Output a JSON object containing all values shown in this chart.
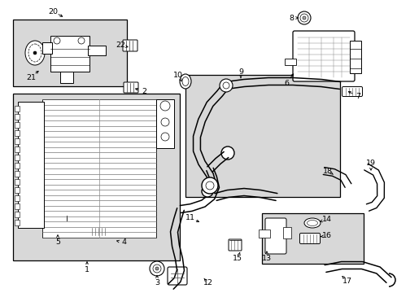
{
  "bg_color": "#ffffff",
  "line_color": "#000000",
  "box_fill": "#d8d8d8",
  "rad_fill": "#d8d8d8",
  "n_rad_lines": 26,
  "labels": [
    [
      "1",
      107,
      332,
      107,
      318
    ],
    [
      "2",
      177,
      112,
      163,
      108
    ],
    [
      "3",
      193,
      347,
      193,
      335
    ],
    [
      "4",
      152,
      298,
      140,
      295
    ],
    [
      "5",
      71,
      298,
      71,
      285
    ],
    [
      "6",
      352,
      102,
      363,
      88
    ],
    [
      "7",
      440,
      118,
      425,
      111
    ],
    [
      "8",
      358,
      22,
      370,
      22
    ],
    [
      "9",
      296,
      88,
      296,
      96
    ],
    [
      "10",
      219,
      92,
      225,
      103
    ],
    [
      "11",
      234,
      268,
      248,
      274
    ],
    [
      "12",
      256,
      348,
      249,
      340
    ],
    [
      "13",
      328,
      318,
      328,
      308
    ],
    [
      "14",
      402,
      270,
      390,
      273
    ],
    [
      "15",
      292,
      318,
      296,
      307
    ],
    [
      "16",
      402,
      290,
      391,
      291
    ],
    [
      "17",
      427,
      345,
      418,
      337
    ],
    [
      "18",
      403,
      210,
      412,
      216
    ],
    [
      "19",
      456,
      200,
      456,
      210
    ],
    [
      "20",
      65,
      14,
      80,
      22
    ],
    [
      "21",
      38,
      95,
      50,
      85
    ],
    [
      "22",
      148,
      55,
      158,
      58
    ]
  ]
}
